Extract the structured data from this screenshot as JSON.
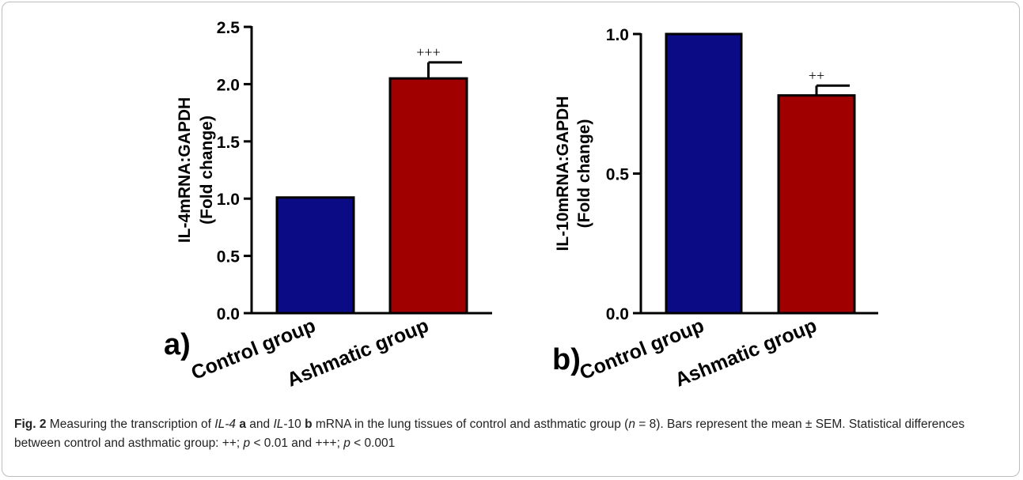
{
  "chart_data": [
    {
      "type": "bar",
      "panel_label": "a)",
      "ylabel_line1": "IL-4mRNA:GAPDH",
      "ylabel_line2": "(Fold change)",
      "categories": [
        "Control group",
        "Ashmatic group"
      ],
      "values": [
        1.01,
        2.05
      ],
      "errors": [
        0,
        0.14
      ],
      "significance": [
        "",
        "+++"
      ],
      "bar_colors": [
        "#0b0b86",
        "#a00000"
      ],
      "ylim": [
        0,
        2.5
      ],
      "yticks": [
        0.0,
        0.5,
        1.0,
        1.5,
        2.0,
        2.5
      ],
      "ytick_labels": [
        "0.0",
        "0.5",
        "1.0",
        "1.5",
        "2.0",
        "2.5"
      ]
    },
    {
      "type": "bar",
      "panel_label": "b)",
      "ylabel_line1": "IL-10mRNA:GAPDH",
      "ylabel_line2": "(Fold change)",
      "categories": [
        "Control group",
        "Ashmatic group"
      ],
      "values": [
        1.0,
        0.78
      ],
      "errors": [
        0,
        0.035
      ],
      "significance": [
        "",
        "++"
      ],
      "bar_colors": [
        "#0b0b86",
        "#a00000"
      ],
      "ylim": [
        0,
        1.0
      ],
      "yticks": [
        0.0,
        0.5,
        1.0
      ],
      "ytick_labels": [
        "0.0",
        "0.5",
        "1.0"
      ]
    }
  ],
  "caption": {
    "fig_label": "Fig. 2",
    "t1": " Measuring the transcription of ",
    "gene1": "IL-4",
    "t2": " ",
    "a": "a",
    "t3": " and ",
    "gene2a": "IL",
    "t4": "-10 ",
    "b": "b",
    "t5": " mRNA in the lung tissues of control and asthmatic group (",
    "n_var": "n",
    "t6": " = 8). Bars represent the mean ± SEM. Statistical differences between control and asthmatic group: ++; ",
    "p1": "p",
    "t7": " < 0.01 and +++; ",
    "p2": "p",
    "t8": " < 0.001"
  }
}
